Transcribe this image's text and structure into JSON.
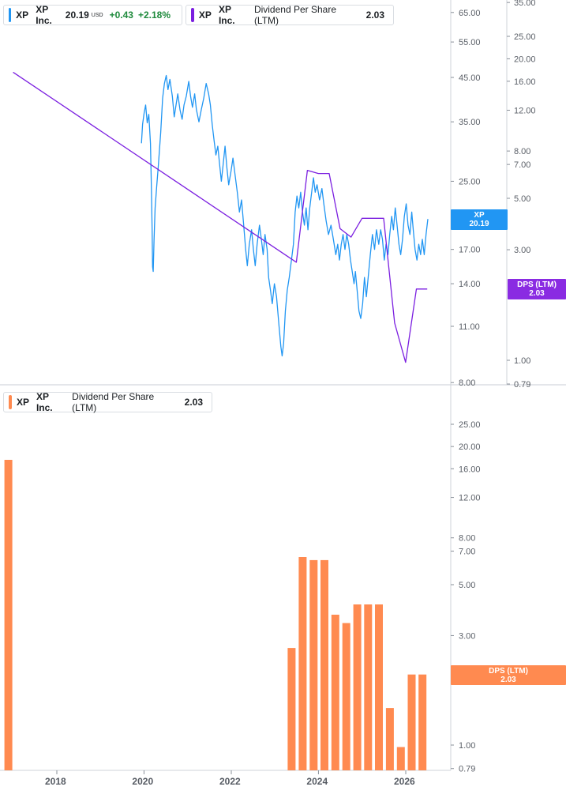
{
  "legend_top": {
    "symbol": "XP",
    "name": "XP Inc.",
    "price": "20.19",
    "currency": "USD",
    "change": "+0.43",
    "change_pct": "+2.18%"
  },
  "legend_dps_top": {
    "symbol": "XP",
    "name": "XP Inc.",
    "metric": "Dividend Per Share (LTM)",
    "value": "2.03"
  },
  "legend_bottom": {
    "symbol": "XP",
    "name": "XP Inc.",
    "metric": "Dividend Per Share (LTM)",
    "value": "2.03"
  },
  "tags": {
    "price_symbol": "XP",
    "price_value": "20.19",
    "dps_label": "DPS (LTM)",
    "dps_value": "2.03",
    "bottom_dps_label": "DPS (LTM)",
    "bottom_dps_value": "2.03"
  },
  "colors": {
    "price": "#2196f3",
    "dps_line": "#7b1fe0",
    "bars": "#ff8a50",
    "up": "#1e8a3c"
  },
  "chart_data": [
    {
      "type": "line",
      "scale": "log",
      "series": [
        {
          "name": "XP",
          "color": "#2196f3",
          "points": [
            [
              "2019-12-11",
              31.0
            ],
            [
              "2019-12-20",
              34.5
            ],
            [
              "2020-01-02",
              36.8
            ],
            [
              "2020-01-15",
              38.5
            ],
            [
              "2020-01-28",
              34.8
            ],
            [
              "2020-02-10",
              36.5
            ],
            [
              "2020-02-24",
              31.0
            ],
            [
              "2020-03-03",
              24.0
            ],
            [
              "2020-03-09",
              19.0
            ],
            [
              "2020-03-13",
              15.4
            ],
            [
              "2020-03-18",
              15.0
            ],
            [
              "2020-03-25",
              17.8
            ],
            [
              "2020-04-03",
              21.5
            ],
            [
              "2020-04-15",
              24.0
            ],
            [
              "2020-05-01",
              27.5
            ],
            [
              "2020-05-20",
              33.0
            ],
            [
              "2020-06-05",
              40.0
            ],
            [
              "2020-06-20",
              43.5
            ],
            [
              "2020-07-05",
              45.5
            ],
            [
              "2020-07-20",
              42.0
            ],
            [
              "2020-08-05",
              44.5
            ],
            [
              "2020-08-25",
              40.5
            ],
            [
              "2020-09-10",
              36.0
            ],
            [
              "2020-09-25",
              38.5
            ],
            [
              "2020-10-10",
              41.0
            ],
            [
              "2020-10-28",
              37.5
            ],
            [
              "2020-11-15",
              35.5
            ],
            [
              "2020-12-01",
              38.5
            ],
            [
              "2020-12-20",
              40.5
            ],
            [
              "2021-01-10",
              44.0
            ],
            [
              "2021-01-25",
              40.5
            ],
            [
              "2021-02-10",
              38.0
            ],
            [
              "2021-02-28",
              41.0
            ],
            [
              "2021-03-15",
              37.5
            ],
            [
              "2021-04-05",
              35.0
            ],
            [
              "2021-04-25",
              37.5
            ],
            [
              "2021-05-15",
              40.0
            ],
            [
              "2021-06-05",
              43.5
            ],
            [
              "2021-06-25",
              41.0
            ],
            [
              "2021-07-10",
              38.5
            ],
            [
              "2021-07-25",
              34.5
            ],
            [
              "2021-08-10",
              31.5
            ],
            [
              "2021-08-25",
              29.0
            ],
            [
              "2021-09-10",
              30.5
            ],
            [
              "2021-09-25",
              27.5
            ],
            [
              "2021-10-10",
              25.0
            ],
            [
              "2021-10-25",
              27.5
            ],
            [
              "2021-11-10",
              30.5
            ],
            [
              "2021-11-25",
              27.0
            ],
            [
              "2021-12-10",
              24.5
            ],
            [
              "2021-12-30",
              26.5
            ],
            [
              "2022-01-15",
              28.5
            ],
            [
              "2022-02-01",
              26.0
            ],
            [
              "2022-02-20",
              23.5
            ],
            [
              "2022-03-10",
              21.0
            ],
            [
              "2022-03-28",
              22.5
            ],
            [
              "2022-04-15",
              19.5
            ],
            [
              "2022-05-01",
              17.0
            ],
            [
              "2022-05-15",
              15.5
            ],
            [
              "2022-06-01",
              17.5
            ],
            [
              "2022-06-20",
              19.0
            ],
            [
              "2022-07-05",
              17.0
            ],
            [
              "2022-07-20",
              15.5
            ],
            [
              "2022-08-05",
              17.5
            ],
            [
              "2022-08-25",
              19.5
            ],
            [
              "2022-09-10",
              18.0
            ],
            [
              "2022-09-25",
              16.5
            ],
            [
              "2022-10-10",
              18.5
            ],
            [
              "2022-10-28",
              17.0
            ],
            [
              "2022-11-10",
              14.5
            ],
            [
              "2022-11-25",
              13.5
            ],
            [
              "2022-12-10",
              12.5
            ],
            [
              "2022-12-28",
              14.0
            ],
            [
              "2023-01-15",
              13.0
            ],
            [
              "2023-02-05",
              11.0
            ],
            [
              "2023-02-20",
              9.8
            ],
            [
              "2023-03-03",
              9.3
            ],
            [
              "2023-03-15",
              10.0
            ],
            [
              "2023-03-30",
              12.0
            ],
            [
              "2023-04-15",
              13.5
            ],
            [
              "2023-05-01",
              14.5
            ],
            [
              "2023-05-20",
              16.0
            ],
            [
              "2023-06-05",
              17.5
            ],
            [
              "2023-06-20",
              21.0
            ],
            [
              "2023-07-05",
              23.0
            ],
            [
              "2023-07-20",
              21.5
            ],
            [
              "2023-08-05",
              23.5
            ],
            [
              "2023-08-20",
              21.0
            ],
            [
              "2023-09-05",
              19.5
            ],
            [
              "2023-09-20",
              21.5
            ],
            [
              "2023-10-05",
              19.0
            ],
            [
              "2023-10-20",
              21.5
            ],
            [
              "2023-11-05",
              23.5
            ],
            [
              "2023-11-20",
              25.5
            ],
            [
              "2023-12-05",
              23.5
            ],
            [
              "2023-12-20",
              24.5
            ],
            [
              "2024-01-10",
              22.5
            ],
            [
              "2024-01-30",
              24.0
            ],
            [
              "2024-02-15",
              22.0
            ],
            [
              "2024-03-05",
              20.0
            ],
            [
              "2024-03-25",
              18.5
            ],
            [
              "2024-04-15",
              19.5
            ],
            [
              "2024-05-05",
              18.0
            ],
            [
              "2024-05-25",
              16.5
            ],
            [
              "2024-06-10",
              17.5
            ],
            [
              "2024-06-25",
              16.0
            ],
            [
              "2024-07-10",
              17.5
            ],
            [
              "2024-07-25",
              18.5
            ],
            [
              "2024-08-10",
              17.0
            ],
            [
              "2024-08-25",
              18.5
            ],
            [
              "2024-09-10",
              17.5
            ],
            [
              "2024-09-25",
              16.0
            ],
            [
              "2024-10-10",
              15.0
            ],
            [
              "2024-10-25",
              14.0
            ],
            [
              "2024-11-05",
              15.0
            ],
            [
              "2024-11-20",
              13.5
            ],
            [
              "2024-12-05",
              12.0
            ],
            [
              "2024-12-20",
              11.5
            ],
            [
              "2025-01-05",
              12.5
            ],
            [
              "2025-01-20",
              14.5
            ],
            [
              "2025-02-05",
              13.0
            ],
            [
              "2025-02-20",
              14.5
            ],
            [
              "2025-03-10",
              16.5
            ],
            [
              "2025-03-28",
              18.5
            ],
            [
              "2025-04-15",
              17.0
            ],
            [
              "2025-05-01",
              19.0
            ],
            [
              "2025-05-20",
              17.5
            ],
            [
              "2025-06-05",
              19.0
            ],
            [
              "2025-06-20",
              18.0
            ],
            [
              "2025-07-05",
              16.0
            ],
            [
              "2025-07-20",
              17.5
            ],
            [
              "2025-08-05",
              16.5
            ],
            [
              "2025-08-20",
              18.5
            ],
            [
              "2025-09-05",
              20.5
            ],
            [
              "2025-09-20",
              19.0
            ],
            [
              "2025-10-05",
              21.5
            ],
            [
              "2025-10-20",
              19.5
            ],
            [
              "2025-11-05",
              17.5
            ],
            [
              "2025-11-20",
              16.5
            ],
            [
              "2025-12-05",
              18.0
            ],
            [
              "2025-12-20",
              20.5
            ],
            [
              "2026-01-05",
              22.0
            ],
            [
              "2026-01-20",
              19.5
            ],
            [
              "2026-02-05",
              18.5
            ],
            [
              "2026-02-20",
              21.0
            ],
            [
              "2026-03-05",
              19.0
            ],
            [
              "2026-03-20",
              17.0
            ],
            [
              "2026-04-05",
              16.0
            ],
            [
              "2026-04-20",
              17.5
            ],
            [
              "2026-05-05",
              16.5
            ],
            [
              "2026-05-20",
              18.0
            ],
            [
              "2026-06-05",
              16.5
            ],
            [
              "2026-06-20",
              18.5
            ],
            [
              "2026-07-05",
              20.19
            ]
          ]
        },
        {
          "name": "Dividend Per Share (LTM)",
          "color": "#7b1fe0",
          "points": [
            [
              "2016-12-31",
              17.5
            ],
            [
              "2023-06-30",
              2.65
            ],
            [
              "2023-09-30",
              6.6
            ],
            [
              "2023-12-31",
              6.4
            ],
            [
              "2024-03-31",
              6.4
            ],
            [
              "2024-06-30",
              3.7
            ],
            [
              "2024-09-30",
              3.4
            ],
            [
              "2024-12-31",
              4.1
            ],
            [
              "2025-03-31",
              4.1
            ],
            [
              "2025-06-30",
              4.1
            ],
            [
              "2025-09-30",
              1.45
            ],
            [
              "2025-12-31",
              0.98
            ],
            [
              "2026-03-31",
              2.03
            ],
            [
              "2026-06-30",
              2.03
            ]
          ]
        }
      ],
      "y_left_ticks": [
        "65.00",
        "55.00",
        "45.00",
        "35.00",
        "25.00",
        "17.00",
        "14.00",
        "11.00",
        "8.00"
      ],
      "y_right_ticks": [
        "35.00",
        "25.00",
        "20.00",
        "16.00",
        "12.00",
        "8.00",
        "7.00",
        "5.00",
        "3.00",
        "1.00",
        "0.79"
      ]
    },
    {
      "type": "bar",
      "scale": "log",
      "series": [
        {
          "name": "Dividend Per Share (LTM)",
          "color": "#ff8a50",
          "points": [
            [
              "2016-12-31",
              17.5
            ],
            [
              "2023-06-30",
              2.65
            ],
            [
              "2023-09-30",
              6.6
            ],
            [
              "2023-12-31",
              6.4
            ],
            [
              "2024-03-31",
              6.4
            ],
            [
              "2024-06-30",
              3.7
            ],
            [
              "2024-09-30",
              3.4
            ],
            [
              "2024-12-31",
              4.1
            ],
            [
              "2025-03-31",
              4.1
            ],
            [
              "2025-06-30",
              4.1
            ],
            [
              "2025-09-30",
              1.45
            ],
            [
              "2025-12-31",
              0.98
            ],
            [
              "2026-03-31",
              2.03
            ],
            [
              "2026-06-30",
              2.03
            ]
          ]
        }
      ],
      "y_ticks": [
        "25.00",
        "20.00",
        "16.00",
        "12.00",
        "8.00",
        "7.00",
        "5.00",
        "3.00",
        "2.00",
        "1.00",
        "0.79"
      ],
      "x_ticks": [
        "2018",
        "2020",
        "2022",
        "2024",
        "2026"
      ]
    }
  ]
}
